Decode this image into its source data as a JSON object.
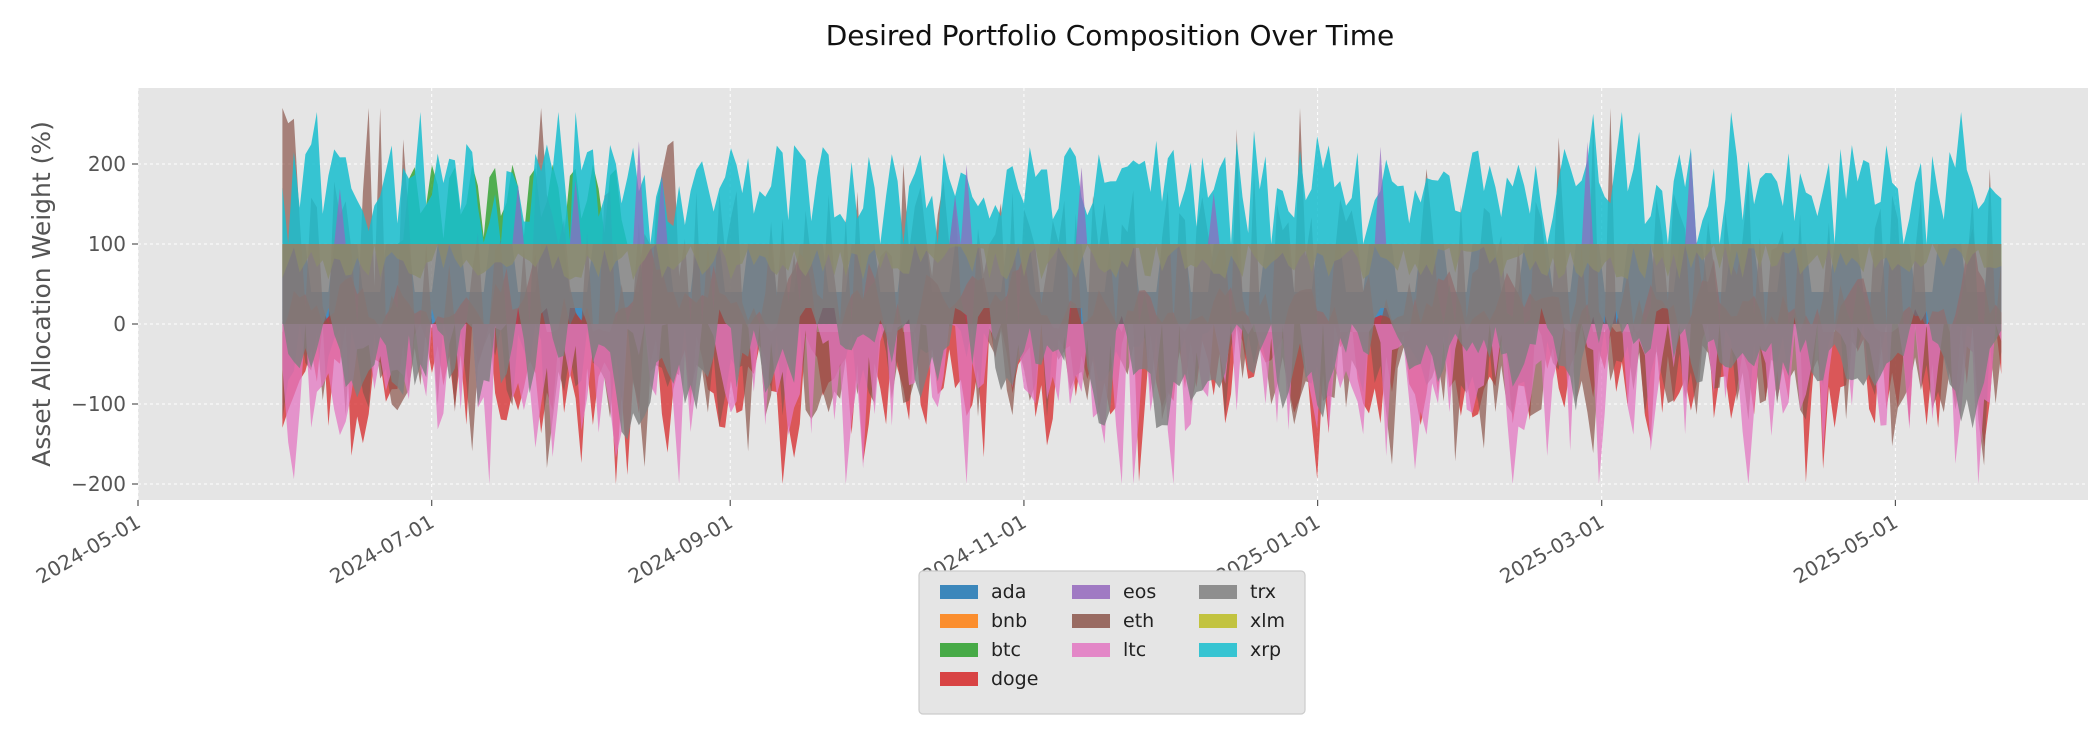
{
  "chart_data": {
    "type": "area",
    "title": "Desired Portfolio Composition Over Time",
    "xlabel": "",
    "ylabel": "Asset Allocation Weight (%)",
    "x_range": [
      "2024-05-01",
      "2025-06-10"
    ],
    "ylim": [
      -220,
      295
    ],
    "x_ticks": [
      "2024-05-01",
      "2024-07-01",
      "2024-09-01",
      "2024-11-01",
      "2025-01-01",
      "2025-03-01",
      "2025-05-01"
    ],
    "y_ticks": [
      -200,
      -100,
      0,
      100,
      200
    ],
    "y_tick_labels": [
      "−200",
      "−100",
      "0",
      "100",
      "200"
    ],
    "grid": true,
    "legend_placement": "bottom-center",
    "date_start": "2024-05-31",
    "date_end": "2025-05-23",
    "series": [
      {
        "name": "ada",
        "color": "#1f77b4",
        "band": [
          0,
          100
        ],
        "note": "partial"
      },
      {
        "name": "bnb",
        "color": "#ff7f0e",
        "band": [
          0,
          0
        ]
      },
      {
        "name": "btc",
        "color": "#2ca02c",
        "band": [
          100,
          210
        ]
      },
      {
        "name": "doge",
        "color": "#d62728",
        "band": [
          -200,
          270
        ]
      },
      {
        "name": "eos",
        "color": "#9467bd",
        "band": [
          0,
          230
        ]
      },
      {
        "name": "eth",
        "color": "#8c564b",
        "band": [
          -200,
          270
        ]
      },
      {
        "name": "ltc",
        "color": "#e377c2",
        "band": [
          -200,
          100
        ]
      },
      {
        "name": "trx",
        "color": "#7f7f7f",
        "band": [
          -160,
          100
        ]
      },
      {
        "name": "xlm",
        "color": "#bcbd22",
        "band": [
          60,
          100
        ]
      },
      {
        "name": "xrp",
        "color": "#17becf",
        "band": [
          100,
          265
        ]
      }
    ]
  }
}
